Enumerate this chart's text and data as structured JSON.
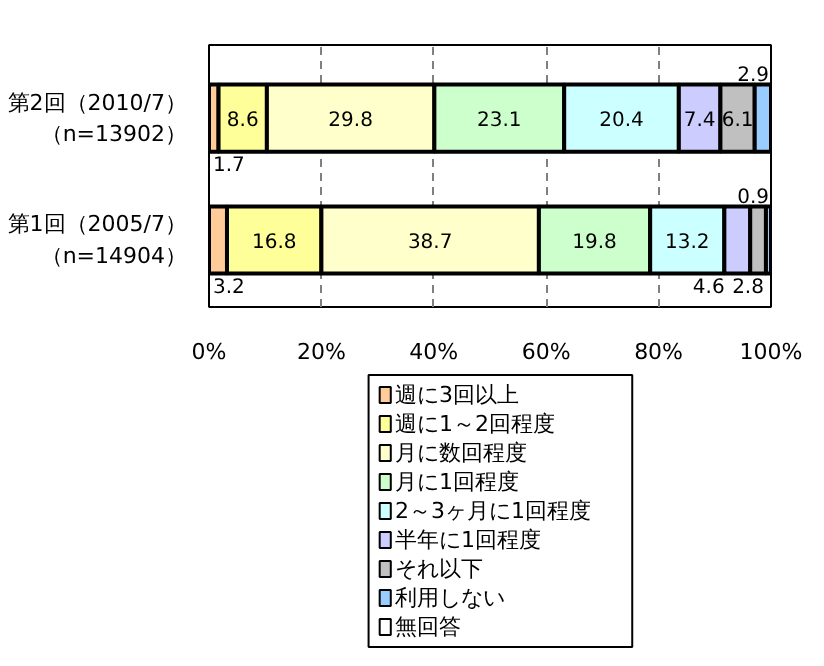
{
  "chart_data": {
    "type": "bar",
    "orientation": "horizontal",
    "stacked": true,
    "categories": [
      "第2回（2010/7）（n=13902）",
      "第1回（2005/7）（n=14904）"
    ],
    "series": [
      {
        "name": "週に3回以上",
        "color": "#ffcc99",
        "values": [
          1.7,
          3.2
        ]
      },
      {
        "name": "週に1～2回程度",
        "color": "#ffff99",
        "values": [
          8.6,
          16.8
        ]
      },
      {
        "name": "月に数回程度",
        "color": "#ffffcc",
        "values": [
          29.8,
          38.7
        ]
      },
      {
        "name": "月に1回程度",
        "color": "#ccffcc",
        "values": [
          23.1,
          19.8
        ]
      },
      {
        "name": "2～3ヶ月に1回程度",
        "color": "#ccffff",
        "values": [
          20.4,
          13.2
        ]
      },
      {
        "name": "半年に1回程度",
        "color": "#ccccff",
        "values": [
          7.4,
          4.6
        ]
      },
      {
        "name": "それ以下",
        "color": "#c0c0c0",
        "values": [
          6.1,
          2.8
        ]
      },
      {
        "name": "利用しない",
        "color": "#99ccff",
        "values": [
          2.9,
          0.9
        ]
      },
      {
        "name": "無回答",
        "color": "#ffffff",
        "values": [
          null,
          null
        ]
      }
    ],
    "xlim": [
      0,
      100
    ],
    "xticks": [
      {
        "value": 0,
        "label": "0%"
      },
      {
        "value": 20,
        "label": "20%"
      },
      {
        "value": 40,
        "label": "40%"
      },
      {
        "value": 60,
        "label": "60%"
      },
      {
        "value": 80,
        "label": "80%"
      },
      {
        "value": 100,
        "label": "100%"
      }
    ],
    "grid": "x",
    "legend": "bottom",
    "data_labels": true
  }
}
